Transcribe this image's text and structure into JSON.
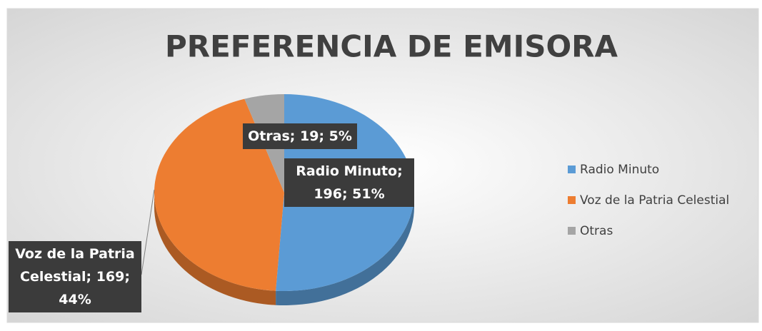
{
  "chart_data": {
    "type": "pie",
    "title": "PREFERENCIA DE EMISORA",
    "categories": [
      "Radio Minuto",
      "Voz de la Patria Celestial",
      "Otras"
    ],
    "values": [
      196,
      169,
      19
    ],
    "value_labels": [
      "Radio Minuto; 196; 51%",
      "Voz de la Patria Celestial; 169; 44%",
      "Otras; 19; 5%"
    ],
    "colors": [
      "#5b9bd5",
      "#ed7d31",
      "#a5a5a5"
    ],
    "legend": "right"
  }
}
